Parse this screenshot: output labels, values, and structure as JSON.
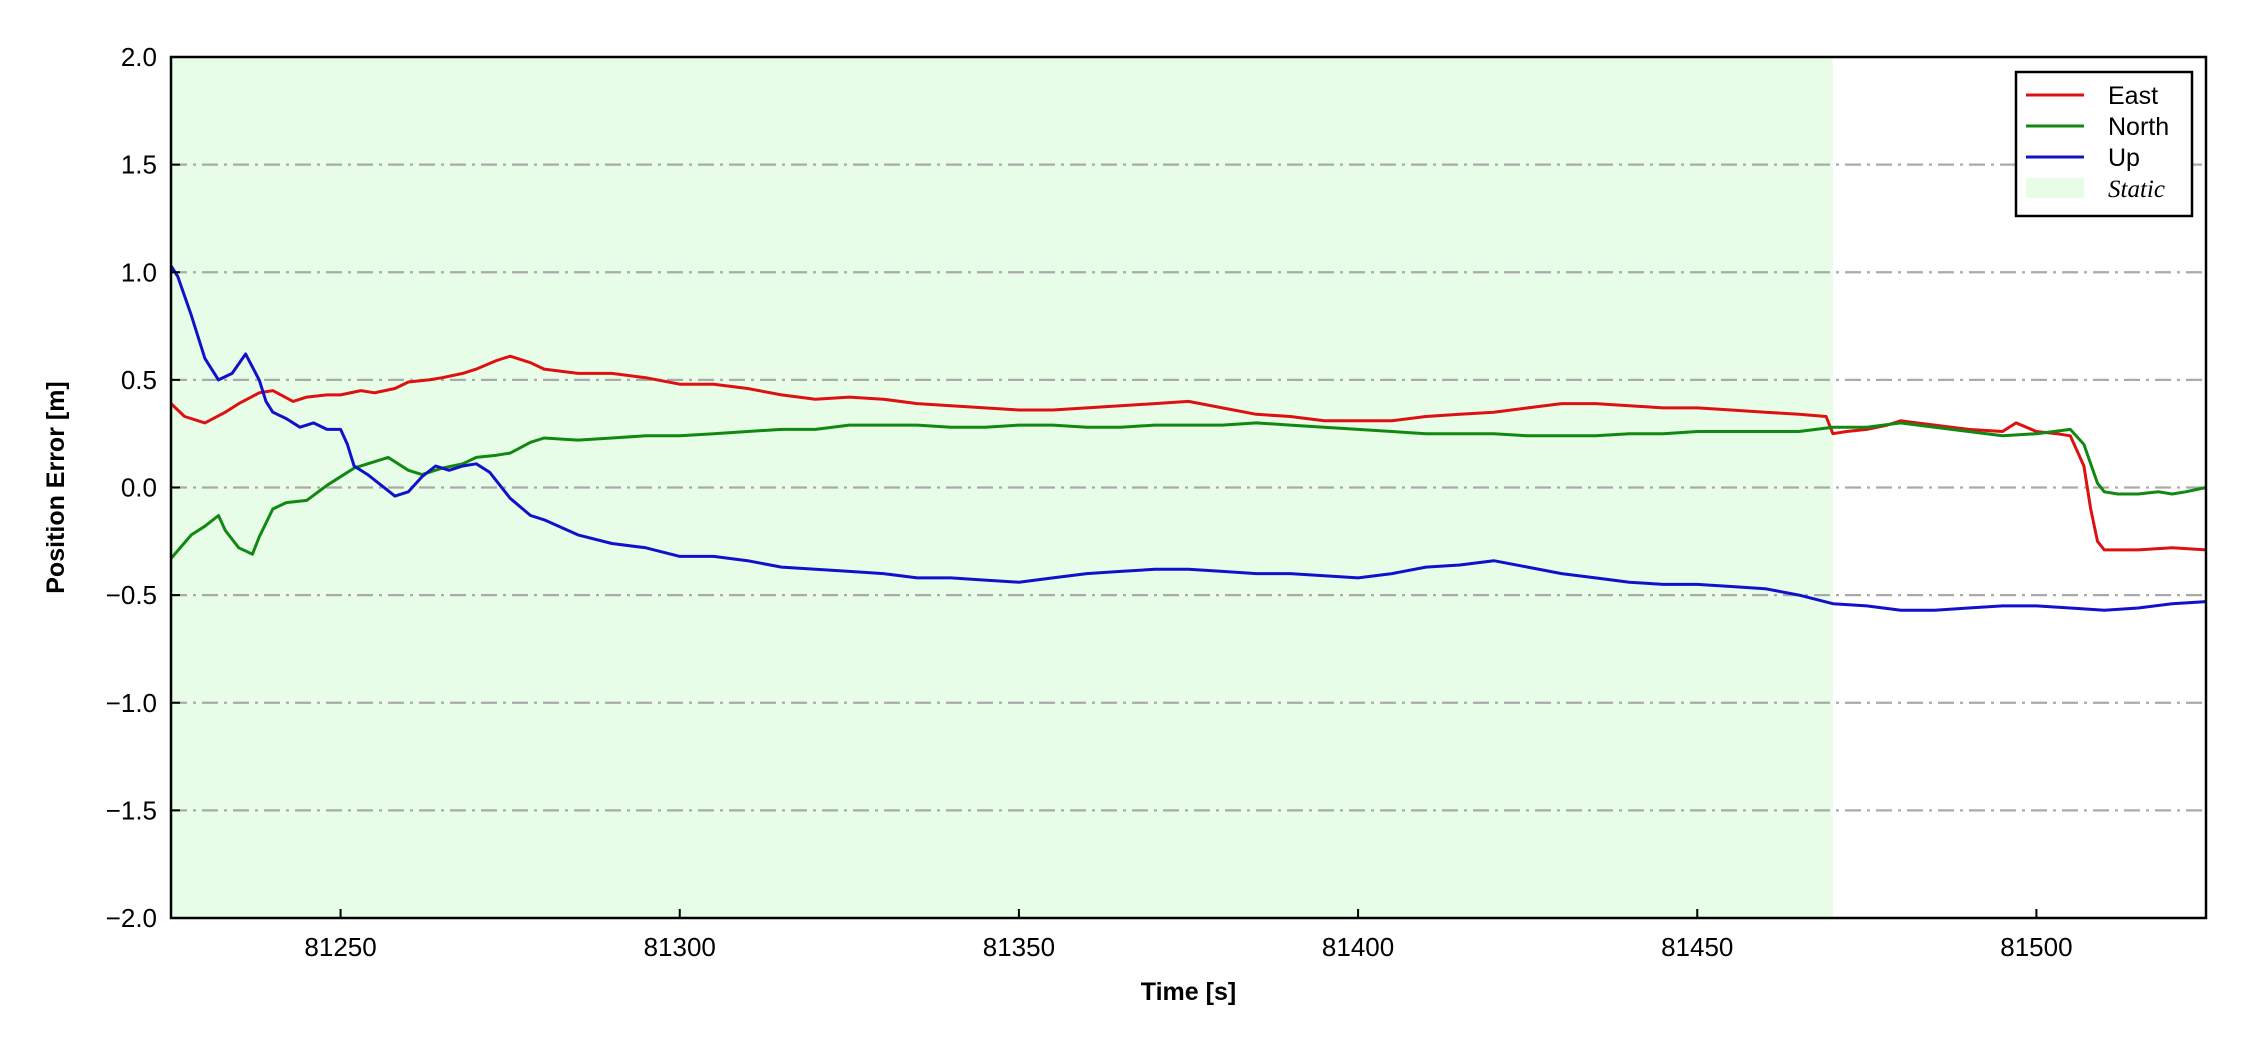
{
  "chart_data": {
    "type": "line",
    "title": "",
    "xlabel": "Time [s]",
    "ylabel": "Position Error [m]",
    "xlim": [
      81225,
      81525
    ],
    "ylim": [
      -2.0,
      2.0
    ],
    "x_ticks": [
      81250,
      81300,
      81350,
      81400,
      81450,
      81500
    ],
    "y_ticks": [
      -2.0,
      -1.5,
      -1.0,
      -0.5,
      0.0,
      0.5,
      1.0,
      1.5,
      2.0
    ],
    "y_tick_labels": [
      "−2.0",
      "−1.5",
      "−1.0",
      "−0.5",
      "0.0",
      "0.5",
      "1.0",
      "1.5",
      "2.0"
    ],
    "x_tick_labels": [
      "81250",
      "81300",
      "81350",
      "81400",
      "81450",
      "81500"
    ],
    "grid": "horizontal dash-dot",
    "legend_position": "top-right",
    "shaded_region": {
      "name": "Static",
      "x_range": [
        81225,
        81470
      ],
      "color": "#e8fde8"
    },
    "series": [
      {
        "name": "East",
        "color": "#dd1111",
        "x": [
          81225,
          81227,
          81230,
          81233,
          81235,
          81238,
          81240,
          81243,
          81245,
          81248,
          81250,
          81253,
          81255,
          81258,
          81260,
          81263,
          81265,
          81268,
          81270,
          81273,
          81275,
          81278,
          81280,
          81285,
          81290,
          81295,
          81300,
          81305,
          81310,
          81315,
          81320,
          81325,
          81330,
          81335,
          81340,
          81345,
          81350,
          81355,
          81360,
          81365,
          81370,
          81375,
          81380,
          81385,
          81390,
          81395,
          81400,
          81405,
          81410,
          81415,
          81420,
          81425,
          81430,
          81435,
          81440,
          81445,
          81450,
          81455,
          81460,
          81465,
          81469,
          81470,
          81472,
          81475,
          81478,
          81480,
          81485,
          81490,
          81495,
          81497,
          81500,
          81503,
          81505,
          81507,
          81508,
          81509,
          81510,
          81512,
          81515,
          81520,
          81525
        ],
        "y": [
          0.39,
          0.33,
          0.3,
          0.35,
          0.39,
          0.44,
          0.45,
          0.4,
          0.42,
          0.43,
          0.43,
          0.45,
          0.44,
          0.46,
          0.49,
          0.5,
          0.51,
          0.53,
          0.55,
          0.59,
          0.61,
          0.58,
          0.55,
          0.53,
          0.53,
          0.51,
          0.48,
          0.48,
          0.46,
          0.43,
          0.41,
          0.42,
          0.41,
          0.39,
          0.38,
          0.37,
          0.36,
          0.36,
          0.37,
          0.38,
          0.39,
          0.4,
          0.37,
          0.34,
          0.33,
          0.31,
          0.31,
          0.31,
          0.33,
          0.34,
          0.35,
          0.37,
          0.39,
          0.39,
          0.38,
          0.37,
          0.37,
          0.36,
          0.35,
          0.34,
          0.33,
          0.25,
          0.26,
          0.27,
          0.29,
          0.31,
          0.29,
          0.27,
          0.26,
          0.3,
          0.26,
          0.25,
          0.24,
          0.1,
          -0.1,
          -0.25,
          -0.29,
          -0.29,
          -0.29,
          -0.28,
          -0.29
        ]
      },
      {
        "name": "North",
        "color": "#118811",
        "x": [
          81225,
          81228,
          81230,
          81232,
          81233,
          81235,
          81237,
          81238,
          81240,
          81242,
          81245,
          81248,
          81250,
          81252,
          81255,
          81257,
          81260,
          81262,
          81265,
          81268,
          81270,
          81273,
          81275,
          81278,
          81280,
          81285,
          81290,
          81295,
          81300,
          81305,
          81310,
          81315,
          81320,
          81325,
          81330,
          81335,
          81340,
          81345,
          81350,
          81355,
          81360,
          81365,
          81370,
          81375,
          81380,
          81385,
          81390,
          81395,
          81400,
          81405,
          81410,
          81415,
          81420,
          81425,
          81430,
          81435,
          81440,
          81445,
          81450,
          81455,
          81460,
          81465,
          81470,
          81475,
          81480,
          81485,
          81490,
          81495,
          81500,
          81505,
          81507,
          81509,
          81510,
          81512,
          81515,
          81518,
          81520,
          81522,
          81525
        ],
        "y": [
          -0.33,
          -0.22,
          -0.18,
          -0.13,
          -0.2,
          -0.28,
          -0.31,
          -0.23,
          -0.1,
          -0.07,
          -0.06,
          0.01,
          0.05,
          0.09,
          0.12,
          0.14,
          0.08,
          0.06,
          0.09,
          0.11,
          0.14,
          0.15,
          0.16,
          0.21,
          0.23,
          0.22,
          0.23,
          0.24,
          0.24,
          0.25,
          0.26,
          0.27,
          0.27,
          0.29,
          0.29,
          0.29,
          0.28,
          0.28,
          0.29,
          0.29,
          0.28,
          0.28,
          0.29,
          0.29,
          0.29,
          0.3,
          0.29,
          0.28,
          0.27,
          0.26,
          0.25,
          0.25,
          0.25,
          0.24,
          0.24,
          0.24,
          0.25,
          0.25,
          0.26,
          0.26,
          0.26,
          0.26,
          0.28,
          0.28,
          0.3,
          0.28,
          0.26,
          0.24,
          0.25,
          0.27,
          0.2,
          0.02,
          -0.02,
          -0.03,
          -0.03,
          -0.02,
          -0.03,
          -0.02,
          0.0
        ]
      },
      {
        "name": "Up",
        "color": "#1111cc",
        "x": [
          81225,
          81226,
          81228,
          81230,
          81232,
          81234,
          81236,
          81238,
          81239,
          81240,
          81242,
          81244,
          81246,
          81248,
          81250,
          81251,
          81252,
          81254,
          81256,
          81258,
          81260,
          81262,
          81264,
          81266,
          81268,
          81270,
          81272,
          81275,
          81278,
          81280,
          81285,
          81290,
          81295,
          81300,
          81305,
          81310,
          81315,
          81320,
          81325,
          81330,
          81335,
          81340,
          81345,
          81350,
          81355,
          81360,
          81365,
          81370,
          81375,
          81380,
          81385,
          81390,
          81395,
          81400,
          81405,
          81410,
          81415,
          81420,
          81425,
          81430,
          81435,
          81440,
          81445,
          81450,
          81455,
          81460,
          81465,
          81470,
          81475,
          81480,
          81485,
          81490,
          81495,
          81500,
          81505,
          81510,
          81515,
          81520,
          81525
        ],
        "y": [
          1.03,
          0.98,
          0.8,
          0.6,
          0.5,
          0.53,
          0.62,
          0.5,
          0.4,
          0.35,
          0.32,
          0.28,
          0.3,
          0.27,
          0.27,
          0.2,
          0.1,
          0.06,
          0.01,
          -0.04,
          -0.02,
          0.05,
          0.1,
          0.08,
          0.1,
          0.11,
          0.07,
          -0.05,
          -0.13,
          -0.15,
          -0.22,
          -0.26,
          -0.28,
          -0.32,
          -0.32,
          -0.34,
          -0.37,
          -0.38,
          -0.39,
          -0.4,
          -0.42,
          -0.42,
          -0.43,
          -0.44,
          -0.42,
          -0.4,
          -0.39,
          -0.38,
          -0.38,
          -0.39,
          -0.4,
          -0.4,
          -0.41,
          -0.42,
          -0.4,
          -0.37,
          -0.36,
          -0.34,
          -0.37,
          -0.4,
          -0.42,
          -0.44,
          -0.45,
          -0.45,
          -0.46,
          -0.47,
          -0.5,
          -0.54,
          -0.55,
          -0.57,
          -0.57,
          -0.56,
          -0.55,
          -0.55,
          -0.56,
          -0.57,
          -0.56,
          -0.54,
          -0.53
        ]
      }
    ]
  }
}
